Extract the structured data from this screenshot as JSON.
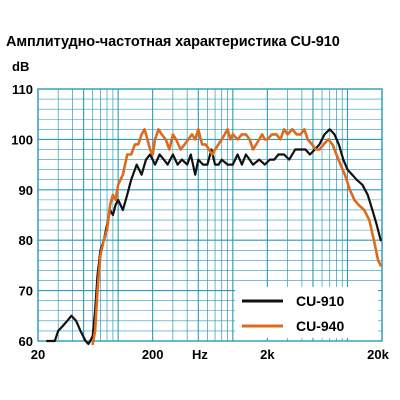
{
  "chart_data": {
    "type": "line",
    "title": "Амплитудно-частотная характеристика CU-910",
    "ylabel": "dB",
    "xlabel": "Hz",
    "x_scale": "log",
    "xlim": [
      20,
      20000
    ],
    "ylim": [
      60,
      110
    ],
    "x_ticks": [
      "20",
      "200",
      "Hz",
      "2k",
      "20k"
    ],
    "y_ticks": [
      "110",
      "100",
      "90",
      "80",
      "70",
      "60"
    ],
    "grid": true,
    "legend_position": "bottom-right",
    "series": [
      {
        "name": "CU-910",
        "color": "#111111",
        "x": [
          24,
          26,
          28,
          30,
          33,
          36,
          39,
          43,
          47,
          52,
          55,
          57,
          60,
          63,
          66,
          70,
          75,
          80,
          85,
          90,
          95,
          100,
          110,
          120,
          130,
          145,
          160,
          175,
          190,
          210,
          230,
          250,
          270,
          300,
          330,
          360,
          400,
          430,
          470,
          500,
          550,
          600,
          650,
          700,
          750,
          800,
          900,
          1000,
          1100,
          1200,
          1300,
          1400,
          1500,
          1700,
          1900,
          2100,
          2300,
          2500,
          2800,
          3100,
          3500,
          3900,
          4300,
          4700,
          5200,
          5700,
          6300,
          7000,
          7700,
          8400,
          9200,
          10000,
          11000,
          12000,
          13500,
          15000,
          16500,
          18000,
          19500
        ],
        "values": [
          60,
          60,
          60,
          62,
          63,
          64,
          65,
          64,
          62,
          60,
          58,
          60,
          61,
          66,
          73,
          78,
          80,
          83,
          86,
          85,
          87,
          88,
          86,
          89,
          92,
          95,
          93,
          96,
          97,
          95,
          97,
          96,
          95,
          97,
          95,
          96,
          95,
          97,
          93,
          96,
          95,
          95,
          98,
          95,
          95,
          96,
          95,
          95,
          97,
          95,
          97,
          96,
          95,
          96,
          95,
          96,
          96,
          97,
          97,
          96,
          98,
          98,
          98,
          97,
          98,
          99,
          101,
          102,
          101,
          99,
          96,
          94,
          93,
          92,
          91,
          89,
          86,
          83,
          80
        ]
      },
      {
        "name": "CU-940",
        "color": "#e06a1c",
        "x": [
          60,
          63,
          66,
          70,
          75,
          80,
          85,
          90,
          95,
          100,
          110,
          120,
          130,
          140,
          150,
          160,
          170,
          180,
          190,
          200,
          210,
          225,
          240,
          260,
          280,
          300,
          320,
          350,
          380,
          410,
          440,
          470,
          500,
          540,
          580,
          620,
          660,
          700,
          750,
          800,
          850,
          900,
          950,
          1000,
          1100,
          1200,
          1300,
          1400,
          1500,
          1600,
          1700,
          1800,
          1900,
          2000,
          2200,
          2400,
          2600,
          2800,
          3000,
          3300,
          3600,
          3900,
          4200,
          4500,
          4900,
          5300,
          5700,
          6200,
          6800,
          7400,
          8000,
          8700,
          9500,
          10500,
          11500,
          12500,
          14000,
          15500,
          17000,
          18500,
          19500
        ],
        "values": [
          58,
          62,
          70,
          77,
          80,
          82,
          87,
          89,
          88,
          91,
          93,
          97,
          97,
          99,
          99,
          101,
          102,
          100,
          98,
          97,
          100,
          102,
          101,
          100,
          98,
          101,
          100,
          98,
          99,
          100,
          101,
          100,
          102,
          99,
          99,
          98,
          97,
          98,
          99,
          100,
          101,
          102,
          100,
          101,
          100,
          101,
          101,
          100,
          98,
          99,
          100,
          101,
          100,
          100,
          101,
          101,
          100,
          102,
          101,
          102,
          101,
          101,
          102,
          100,
          99,
          98,
          98,
          99,
          100,
          99,
          97,
          95,
          93,
          90,
          88,
          87,
          86,
          84,
          80,
          76,
          75
        ]
      }
    ]
  }
}
